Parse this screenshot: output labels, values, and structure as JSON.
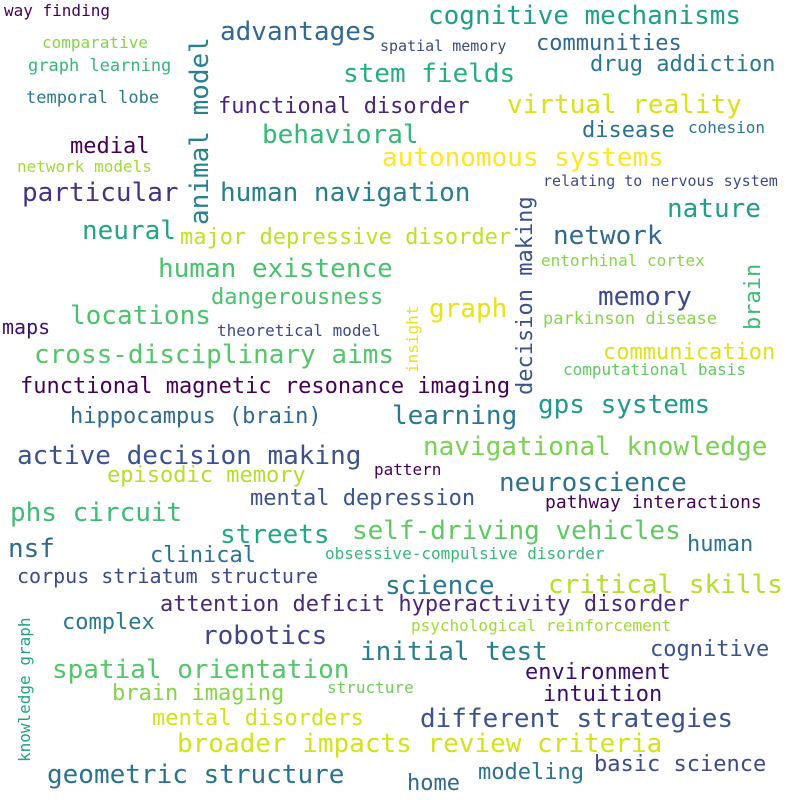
{
  "words": [
    {
      "text": "way finding",
      "color": "#440154"
    },
    {
      "text": "cognitive mechanisms",
      "color": "#1f9e89"
    },
    {
      "text": "advantages",
      "color": "#31688e"
    },
    {
      "text": "comparative",
      "color": "#86d549"
    },
    {
      "text": "spatial memory",
      "color": "#3e4989"
    },
    {
      "text": "communities",
      "color": "#31688e"
    },
    {
      "text": "graph learning",
      "color": "#35b779"
    },
    {
      "text": "stem fields",
      "color": "#26ad81"
    },
    {
      "text": "drug addiction",
      "color": "#2a788e"
    },
    {
      "text": "temporal lobe",
      "color": "#2a788e"
    },
    {
      "text": "animal model",
      "color": "#26828e"
    },
    {
      "text": "functional disorder",
      "color": "#482576"
    },
    {
      "text": "virtual reality",
      "color": "#d8e219"
    },
    {
      "text": "behavioral",
      "color": "#35b779"
    },
    {
      "text": "disease",
      "color": "#2c728e"
    },
    {
      "text": "cohesion",
      "color": "#2a788e"
    },
    {
      "text": "medial",
      "color": "#440154"
    },
    {
      "text": "autonomous systems",
      "color": "#fde725"
    },
    {
      "text": "network models",
      "color": "#a0da39"
    },
    {
      "text": "particular",
      "color": "#46327e"
    },
    {
      "text": "human navigation",
      "color": "#277f8e"
    },
    {
      "text": "decision making",
      "color": "#3b528b"
    },
    {
      "text": "relating to nervous system",
      "color": "#3e4989"
    },
    {
      "text": "nature",
      "color": "#1f9e89"
    },
    {
      "text": "neural",
      "color": "#21a585"
    },
    {
      "text": "major depressive disorder",
      "color": "#c2df23"
    },
    {
      "text": "network",
      "color": "#31688e"
    },
    {
      "text": "human existence",
      "color": "#4ac16d"
    },
    {
      "text": "entorhinal cortex",
      "color": "#86d549"
    },
    {
      "text": "brain",
      "color": "#3dbc74"
    },
    {
      "text": "dangerousness",
      "color": "#4ac16d"
    },
    {
      "text": "memory",
      "color": "#3e4989"
    },
    {
      "text": "locations",
      "color": "#4ac16d"
    },
    {
      "text": "graph",
      "color": "#e5e419"
    },
    {
      "text": "insight",
      "color": "#e5e419"
    },
    {
      "text": "parkinson disease",
      "color": "#86d549"
    },
    {
      "text": "maps",
      "color": "#3b0f70"
    },
    {
      "text": "theoretical model",
      "color": "#3e4989"
    },
    {
      "text": "cross-disciplinary aims",
      "color": "#54c568"
    },
    {
      "text": "communication",
      "color": "#dde318"
    },
    {
      "text": "computational basis",
      "color": "#5ec962"
    },
    {
      "text": "functional magnetic resonance imaging",
      "color": "#440154"
    },
    {
      "text": "gps systems",
      "color": "#1f9a8a"
    },
    {
      "text": "hippocampus (brain)",
      "color": "#31688e"
    },
    {
      "text": "learning",
      "color": "#2a788e"
    },
    {
      "text": "navigational knowledge",
      "color": "#7ad151"
    },
    {
      "text": "active decision making",
      "color": "#3b528b"
    },
    {
      "text": "episodic memory",
      "color": "#b5de2b"
    },
    {
      "text": "pattern",
      "color": "#440154"
    },
    {
      "text": "neuroscience",
      "color": "#2c728e"
    },
    {
      "text": "mental depression",
      "color": "#3b528b"
    },
    {
      "text": "pathway interactions",
      "color": "#440154"
    },
    {
      "text": "phs circuit",
      "color": "#3dbc74"
    },
    {
      "text": "streets",
      "color": "#22a884"
    },
    {
      "text": "self-driving vehicles",
      "color": "#5ec962"
    },
    {
      "text": "nsf",
      "color": "#31688e"
    },
    {
      "text": "clinical",
      "color": "#2c728e"
    },
    {
      "text": "obsessive-compulsive disorder",
      "color": "#35b779"
    },
    {
      "text": "human",
      "color": "#2c728e"
    },
    {
      "text": "corpus striatum structure",
      "color": "#3e4989"
    },
    {
      "text": "science",
      "color": "#2a788e"
    },
    {
      "text": "critical skills",
      "color": "#b5de2b"
    },
    {
      "text": "knowledge graph",
      "color": "#20a386"
    },
    {
      "text": "attention deficit hyperactivity disorder",
      "color": "#482878"
    },
    {
      "text": "complex",
      "color": "#2a788e"
    },
    {
      "text": "robotics",
      "color": "#414487"
    },
    {
      "text": "psychological reinforcement",
      "color": "#a0da39"
    },
    {
      "text": "initial test",
      "color": "#277f8e"
    },
    {
      "text": "cognitive",
      "color": "#3b528b"
    },
    {
      "text": "spatial orientation",
      "color": "#54c568"
    },
    {
      "text": "environment",
      "color": "#3b0f70"
    },
    {
      "text": "brain imaging",
      "color": "#86d549"
    },
    {
      "text": "structure",
      "color": "#6ece58"
    },
    {
      "text": "intuition",
      "color": "#3b0f70"
    },
    {
      "text": "mental disorders",
      "color": "#d2e21b"
    },
    {
      "text": "different strategies",
      "color": "#3b528b"
    },
    {
      "text": "broader impacts review criteria",
      "color": "#d2e21b"
    },
    {
      "text": "geometric structure",
      "color": "#2c728e"
    },
    {
      "text": "modeling",
      "color": "#2c728e"
    },
    {
      "text": "basic science",
      "color": "#3e4989"
    },
    {
      "text": "home",
      "color": "#31688e"
    }
  ]
}
